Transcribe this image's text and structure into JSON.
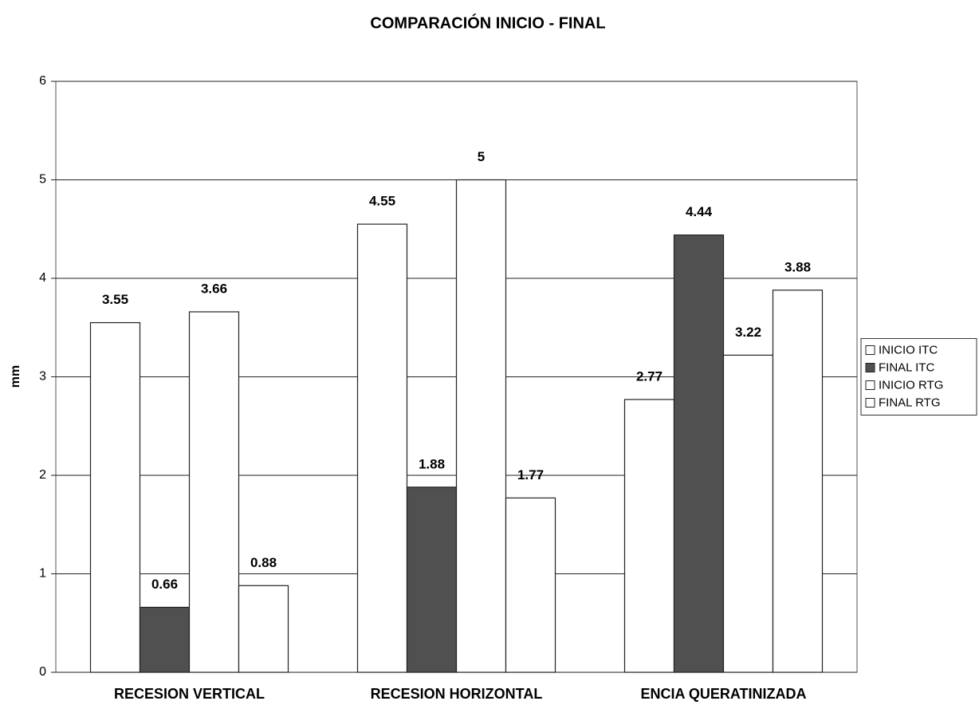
{
  "chart_data": {
    "type": "bar",
    "title": "COMPARACIÓN INICIO - FINAL",
    "y_label": "mm",
    "categories": [
      "RECESION VERTICAL",
      "RECESION HORIZONTAL",
      "ENCIA QUERATINIZADA"
    ],
    "series": [
      {
        "name": "INICIO ITC",
        "color": "#ffffff",
        "values": [
          3.55,
          4.55,
          2.77
        ]
      },
      {
        "name": "FINAL ITC",
        "color": "#505050",
        "values": [
          0.66,
          1.88,
          4.44
        ]
      },
      {
        "name": "INICIO RTG",
        "color": "#ffffff",
        "values": [
          3.66,
          5,
          3.22
        ]
      },
      {
        "name": "FINAL RTG",
        "color": "#ffffff",
        "values": [
          0.88,
          1.77,
          3.88
        ]
      }
    ],
    "ylim": [
      0,
      6
    ],
    "yticks": [
      0,
      1,
      2,
      3,
      4,
      5,
      6
    ],
    "grid": true,
    "legend": "right"
  }
}
